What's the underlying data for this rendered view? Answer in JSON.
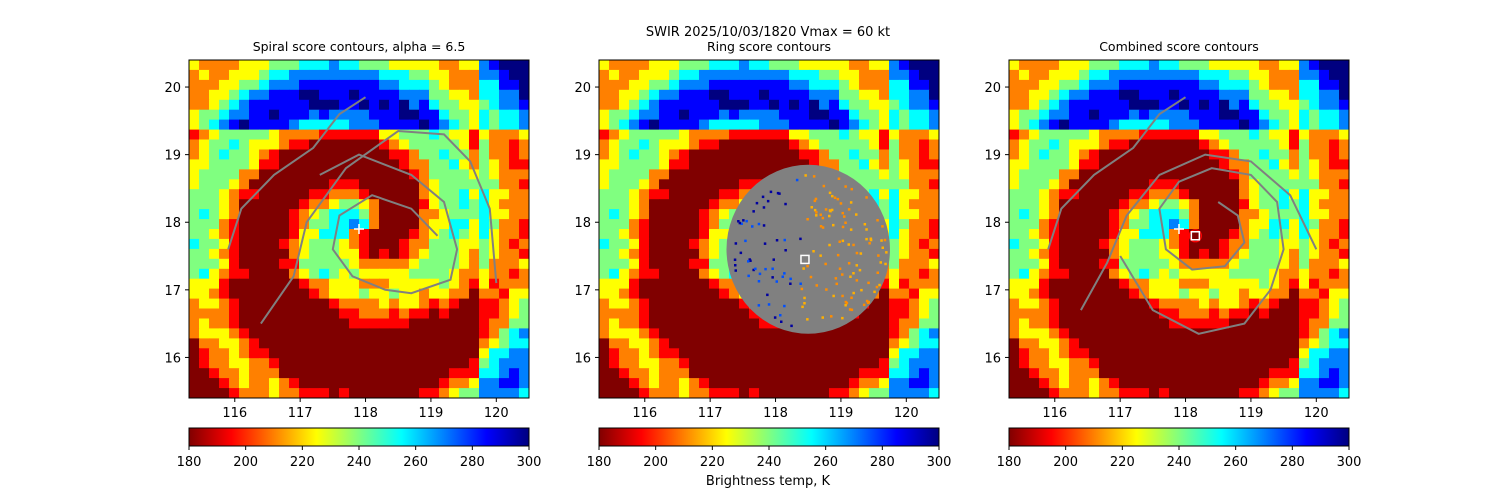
{
  "figure": {
    "suptitle_line1": "SWIR  2025/10/03/1820    Vmax = 60 kt",
    "colorbar_label": "Brightness temp, K"
  },
  "colors": {
    "contour": "#808080",
    "ring_mask": "#808080",
    "center_marker": "#ffffff",
    "best_marker": "#ffffff",
    "best_marker_edge": "#ff0000"
  },
  "colormap": {
    "name": "jet_r",
    "stops": [
      "#800000",
      "#ff0000",
      "#ff8000",
      "#ffff00",
      "#80ff80",
      "#00ffff",
      "#0080ff",
      "#0000ff",
      "#000080"
    ]
  },
  "chart_data": [
    {
      "type": "heatmap",
      "title": "Spiral score contours, alpha =  6.5",
      "xlim": [
        115.3,
        120.5
      ],
      "ylim": [
        15.4,
        20.4
      ],
      "xticks": [
        116,
        117,
        118,
        119,
        120
      ],
      "yticks": [
        16,
        17,
        18,
        19,
        20
      ],
      "colorbar": {
        "min": 180,
        "max": 300,
        "ticks": [
          180,
          200,
          220,
          240,
          260,
          280,
          300
        ]
      },
      "center_marker": {
        "lon": 117.9,
        "lat": 17.9,
        "symbol": "+"
      },
      "contours": [
        [
          [
            115.9,
            17.6
          ],
          [
            116.1,
            18.2
          ],
          [
            116.6,
            18.7
          ],
          [
            117.2,
            19.1
          ],
          [
            117.6,
            19.6
          ],
          [
            118.0,
            19.85
          ]
        ],
        [
          [
            116.4,
            16.5
          ],
          [
            116.9,
            17.2
          ],
          [
            117.1,
            18.0
          ],
          [
            117.7,
            18.8
          ],
          [
            118.5,
            19.35
          ],
          [
            119.2,
            19.3
          ],
          [
            119.6,
            18.9
          ],
          [
            119.9,
            18.2
          ],
          [
            120.0,
            17.1
          ]
        ],
        [
          [
            117.3,
            18.7
          ],
          [
            117.9,
            19.0
          ],
          [
            118.7,
            18.7
          ],
          [
            119.2,
            18.3
          ],
          [
            119.4,
            17.6
          ],
          [
            119.3,
            17.15
          ],
          [
            118.7,
            16.95
          ],
          [
            118.3,
            17.0
          ],
          [
            117.8,
            17.2
          ],
          [
            117.5,
            17.6
          ],
          [
            117.6,
            18.1
          ],
          [
            118.1,
            18.4
          ],
          [
            118.7,
            18.2
          ],
          [
            119.1,
            17.8
          ]
        ]
      ]
    },
    {
      "type": "heatmap",
      "title": "Ring score contours",
      "xlim": [
        115.3,
        120.5
      ],
      "ylim": [
        15.4,
        20.4
      ],
      "xticks": [
        116,
        117,
        118,
        119,
        120
      ],
      "yticks": [
        16,
        17,
        18,
        19,
        20
      ],
      "colorbar": {
        "min": 180,
        "max": 300,
        "ticks": [
          180,
          200,
          220,
          240,
          260,
          280,
          300
        ]
      },
      "ring_mask": {
        "lon": 118.5,
        "lat": 17.6,
        "radius_deg": 1.25
      },
      "best_marker": {
        "lon": 118.45,
        "lat": 17.45,
        "symbol": "square"
      },
      "contours": []
    },
    {
      "type": "heatmap",
      "title": "Combined score contours",
      "xlim": [
        115.3,
        120.5
      ],
      "ylim": [
        15.4,
        20.4
      ],
      "xticks": [
        116,
        117,
        118,
        119,
        120
      ],
      "yticks": [
        16,
        17,
        18,
        19,
        20
      ],
      "colorbar": {
        "min": 180,
        "max": 300,
        "ticks": [
          180,
          200,
          220,
          240,
          260,
          280,
          300
        ]
      },
      "center_marker": {
        "lon": 117.9,
        "lat": 17.9,
        "symbol": "+"
      },
      "best_marker": {
        "lon": 118.15,
        "lat": 17.8,
        "symbol": "square"
      },
      "contours": [
        [
          [
            115.9,
            17.6
          ],
          [
            116.1,
            18.2
          ],
          [
            116.6,
            18.7
          ],
          [
            117.2,
            19.1
          ],
          [
            117.6,
            19.6
          ],
          [
            118.0,
            19.85
          ]
        ],
        [
          [
            116.4,
            16.7
          ],
          [
            116.8,
            17.4
          ],
          [
            117.1,
            18.1
          ],
          [
            117.6,
            18.7
          ],
          [
            118.3,
            19.0
          ],
          [
            119.0,
            18.9
          ],
          [
            119.6,
            18.4
          ],
          [
            120.0,
            17.6
          ]
        ],
        [
          [
            117.0,
            17.5
          ],
          [
            117.5,
            16.7
          ],
          [
            118.2,
            16.35
          ],
          [
            118.9,
            16.5
          ],
          [
            119.3,
            17.0
          ],
          [
            119.5,
            17.6
          ],
          [
            119.4,
            18.3
          ],
          [
            119.0,
            18.7
          ],
          [
            118.4,
            18.8
          ],
          [
            117.9,
            18.6
          ],
          [
            117.6,
            18.2
          ],
          [
            117.7,
            17.6
          ],
          [
            118.1,
            17.3
          ],
          [
            118.6,
            17.35
          ],
          [
            118.9,
            17.7
          ],
          [
            118.8,
            18.1
          ],
          [
            118.5,
            18.3
          ]
        ]
      ]
    }
  ]
}
